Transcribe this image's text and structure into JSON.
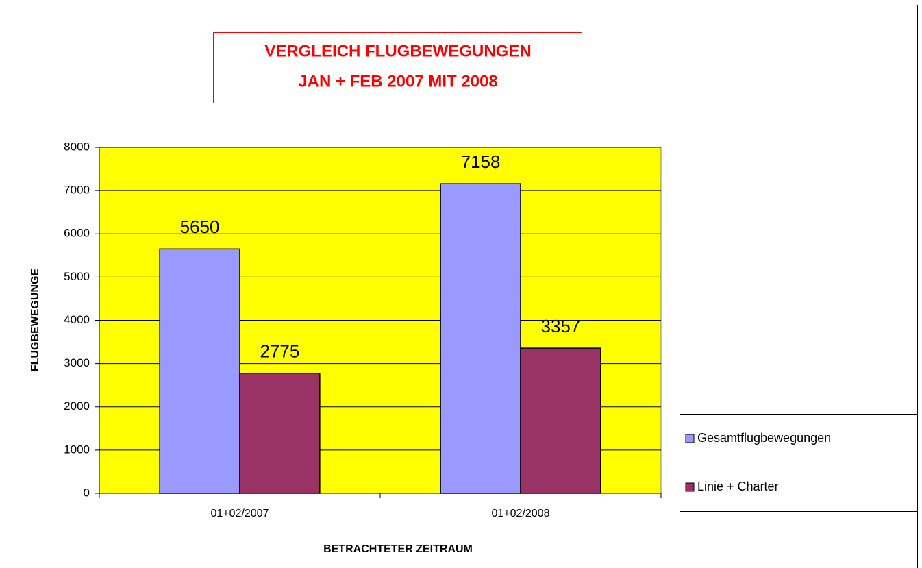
{
  "chart_data": {
    "type": "bar",
    "title": [
      "VERGLEICH FLUGBEWEGUNGEN",
      "JAN + FEB 2007 MIT 2008"
    ],
    "xlabel": "BETRACHTETER ZEITRAUM",
    "ylabel": "FLUGBEWEGUNGE",
    "categories": [
      "01+02/2007",
      "01+02/2008"
    ],
    "series": [
      {
        "name": "Gesamtflugbewegungen",
        "color": "#9999ff",
        "values": [
          5650,
          7158
        ]
      },
      {
        "name": "Linie + Charter",
        "color": "#993366",
        "values": [
          2775,
          3357
        ]
      }
    ],
    "ylim": [
      0,
      8000
    ],
    "yticks": [
      0,
      1000,
      2000,
      3000,
      4000,
      5000,
      6000,
      7000,
      8000
    ],
    "grid": true,
    "plot_background": "#ffff00",
    "legend": "right"
  }
}
